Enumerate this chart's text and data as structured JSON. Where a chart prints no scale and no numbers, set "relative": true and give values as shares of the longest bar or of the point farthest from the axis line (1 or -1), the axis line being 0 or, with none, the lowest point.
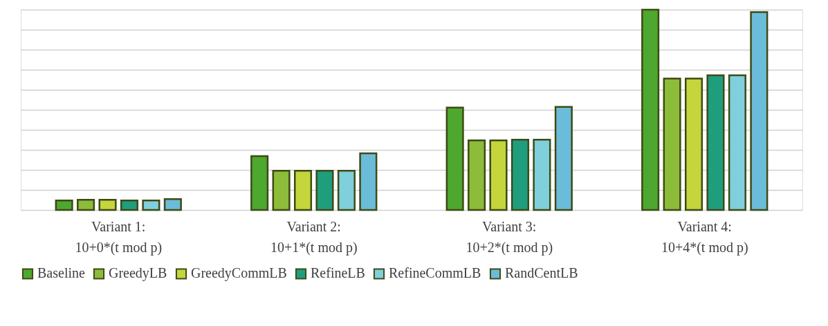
{
  "chart_data": {
    "type": "bar",
    "relative": true,
    "grid": "y",
    "legend": "bottom",
    "categories": [
      "Variant 1:\n10+0*(t mod p)",
      "Variant 2:\n10+1*(t mod p)",
      "Variant 3:\n10+2*(t mod p)",
      "Variant 4:\n10+4*(t mod p)"
    ],
    "series": [
      {
        "name": "Baseline",
        "color": "#4ea72e",
        "values": [
          0.047,
          0.269,
          0.511,
          1.0
        ]
      },
      {
        "name": "GreedyLB",
        "color": "#8dbb3a",
        "values": [
          0.051,
          0.196,
          0.347,
          0.656
        ]
      },
      {
        "name": "GreedyCommLB",
        "color": "#c5d53c",
        "values": [
          0.051,
          0.196,
          0.347,
          0.656
        ]
      },
      {
        "name": "RefineLB",
        "color": "#1f9e7e",
        "values": [
          0.047,
          0.196,
          0.351,
          0.672
        ]
      },
      {
        "name": "RefineCommLB",
        "color": "#7fd0dc",
        "values": [
          0.047,
          0.196,
          0.351,
          0.672
        ]
      },
      {
        "name": "RandCentLB",
        "color": "#6bbcd9",
        "values": [
          0.054,
          0.283,
          0.515,
          0.988
        ]
      }
    ]
  }
}
